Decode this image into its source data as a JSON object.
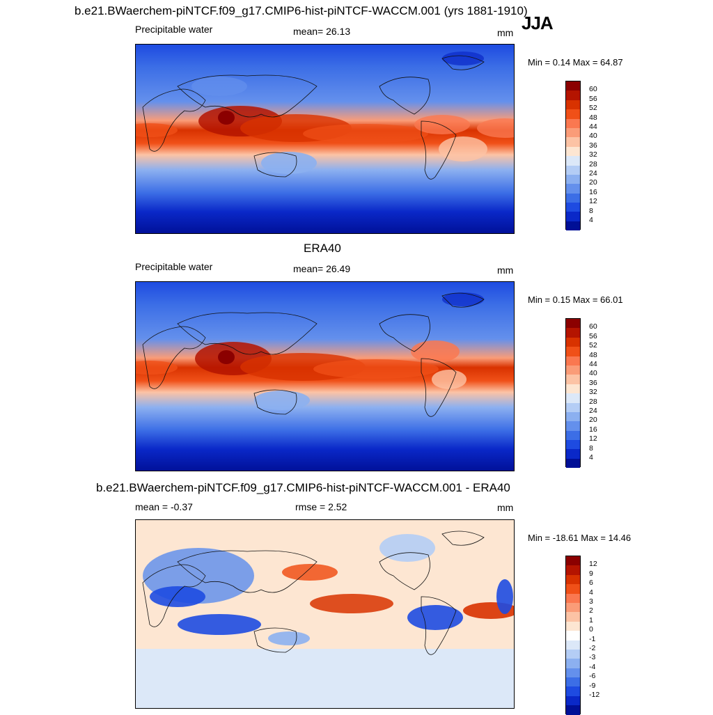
{
  "figure": {
    "season": "JJA",
    "units": "mm"
  },
  "panels": [
    {
      "id": "model",
      "title": "b.e21.BWaerchem-piNTCF.f09_g17.CMIP6-hist-piNTCF-WACCM.001 (yrs 1881-1910)",
      "left_label": "Precipitable water",
      "center_label": "mean=  26.13",
      "right_label": "mm",
      "minmax": "Min =   0.14 Max =  64.87",
      "colorbar": {
        "colors": [
          "#8b0000",
          "#b41400",
          "#d83200",
          "#f05018",
          "#fa7850",
          "#fa9c78",
          "#fcc3a5",
          "#fde6d2",
          "#dce8f8",
          "#b4cdf5",
          "#8cb0f0",
          "#6490ec",
          "#3c6ee6",
          "#1e4be1",
          "#0a28c8",
          "#000f96"
        ],
        "ticks": [
          "60",
          "56",
          "52",
          "48",
          "44",
          "40",
          "36",
          "32",
          "28",
          "24",
          "20",
          "16",
          "12",
          "8",
          "4"
        ]
      }
    },
    {
      "id": "obs",
      "title": "ERA40",
      "left_label": "Precipitable water",
      "center_label": "mean=  26.49",
      "right_label": "mm",
      "minmax": "Min =   0.15 Max =  66.01",
      "colorbar": {
        "colors": [
          "#8b0000",
          "#b41400",
          "#d83200",
          "#f05018",
          "#fa7850",
          "#fa9c78",
          "#fcc3a5",
          "#fde6d2",
          "#dce8f8",
          "#b4cdf5",
          "#8cb0f0",
          "#6490ec",
          "#3c6ee6",
          "#1e4be1",
          "#0a28c8",
          "#000f96"
        ],
        "ticks": [
          "60",
          "56",
          "52",
          "48",
          "44",
          "40",
          "36",
          "32",
          "28",
          "24",
          "20",
          "16",
          "12",
          "8",
          "4"
        ]
      }
    },
    {
      "id": "diff",
      "title": "b.e21.BWaerchem-piNTCF.f09_g17.CMIP6-hist-piNTCF-WACCM.001 - ERA40",
      "left_label": "mean =  -0.37",
      "center_label": "rmse =   2.52",
      "right_label": "mm",
      "minmax": "Min = -18.61 Max =  14.46",
      "colorbar": {
        "colors": [
          "#8b0000",
          "#b41400",
          "#d83200",
          "#f05018",
          "#fa7850",
          "#fa9c78",
          "#fcc3a5",
          "#fde6d2",
          "#ffffff",
          "#dce8f8",
          "#b4cdf5",
          "#8cb0f0",
          "#6490ec",
          "#3c6ee6",
          "#1e4be1",
          "#0a28c8",
          "#000f96"
        ],
        "ticks": [
          "12",
          "9",
          "6",
          "4",
          "3",
          "2",
          "1",
          "0",
          "-1",
          "-2",
          "-3",
          "-4",
          "-6",
          "-9",
          "-12"
        ]
      }
    }
  ],
  "colors": {
    "deep_red": "#8b0000",
    "red": "#d83200",
    "light_orange": "#fde6d2",
    "light_blue": "#dce8f8",
    "blue": "#3c6ee6",
    "navy": "#000f96"
  }
}
